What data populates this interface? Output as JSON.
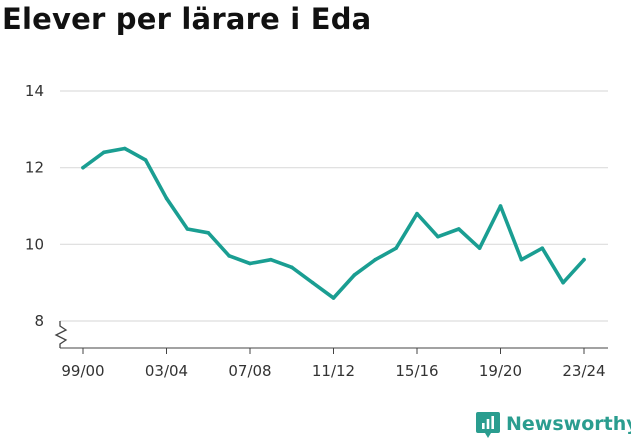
{
  "chart_data": {
    "type": "line",
    "title": "Elever per lärare i Eda",
    "xlabel": "",
    "ylabel": "",
    "x": [
      "99/00",
      "00/01",
      "01/02",
      "02/03",
      "03/04",
      "04/05",
      "05/06",
      "06/07",
      "07/08",
      "08/09",
      "09/10",
      "10/11",
      "11/12",
      "12/13",
      "13/14",
      "14/15",
      "15/16",
      "16/17",
      "17/18",
      "18/19",
      "19/20",
      "20/21",
      "21/22",
      "22/23",
      "23/24"
    ],
    "xtick_labels": [
      "99/00",
      "03/04",
      "07/08",
      "11/12",
      "15/16",
      "19/20",
      "23/24"
    ],
    "series": [
      {
        "values": [
          12.0,
          12.4,
          12.5,
          12.2,
          11.2,
          10.4,
          10.3,
          9.7,
          9.5,
          9.6,
          9.4,
          9.0,
          8.6,
          9.2,
          9.6,
          9.9,
          10.8,
          10.2,
          10.4,
          9.9,
          11.0,
          9.6,
          9.9,
          9.0,
          9.6
        ]
      }
    ],
    "ylim": [
      8,
      14
    ],
    "yticks": [
      8,
      10,
      12,
      14
    ],
    "axis_break": true,
    "grid": true,
    "line_color": "#1a9e92",
    "grid_color": "#dddddd"
  },
  "brand": {
    "name": "Newsworthy",
    "color": "#2a9d8f"
  }
}
